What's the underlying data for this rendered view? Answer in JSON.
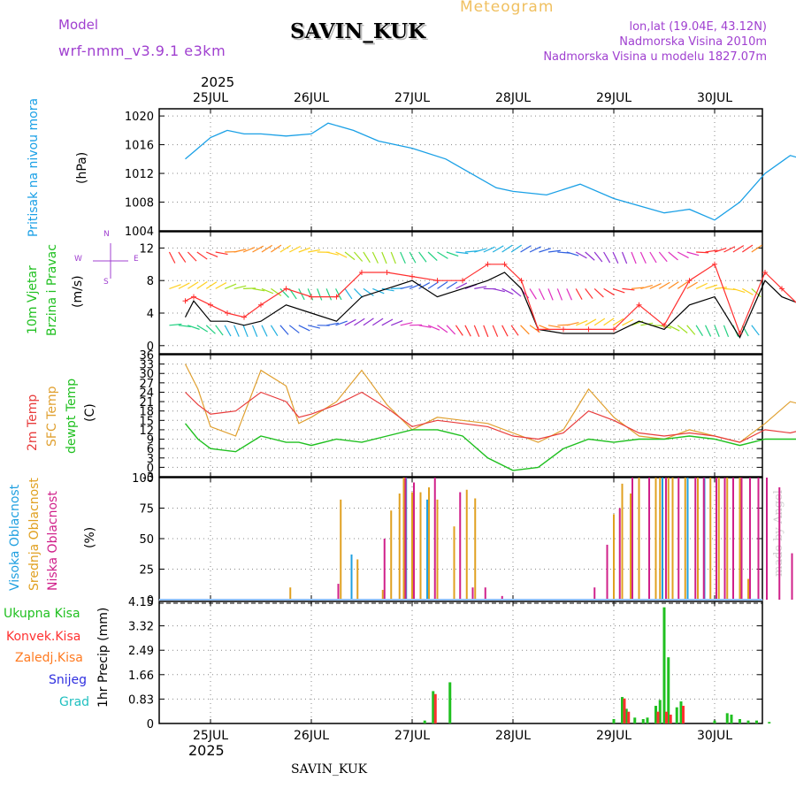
{
  "header": {
    "model_label": "Model",
    "model_name": "wrf-nmm_v3.9.1  e3km",
    "station": "SAVIN_KUK",
    "product": "Meteogram",
    "location_line1": "lon,lat (19.04E, 43.12N)",
    "location_line2": "Nadmorska Visina 2010m",
    "location_line3": "Nadmorska Visina u modelu 1827.07m",
    "year_top": "2025",
    "year_bottom": "2025",
    "footer_station": "SAVIN_KUK",
    "watermark": "made by Angel"
  },
  "panel_labels": {
    "pressure_title": "Pritisak na nivou mora",
    "pressure_unit": "(hPa)",
    "wind_title1": "10m Vjetar",
    "wind_title2": "Brzina i Pravac",
    "wind_unit": "(m/s)",
    "compass_n": "N",
    "compass_w": "W",
    "compass_e": "E",
    "compass_s": "S",
    "temp_title1": "2m Temp",
    "temp_title2": "SFC Temp",
    "temp_title3": "dewpt Temp",
    "temp_unit": "(C)",
    "cloud_title1": "Visoka Oblacnost",
    "cloud_title2": "Srednja Oblacnost",
    "cloud_title3": "Niska Oblacnost",
    "cloud_unit": "(%)",
    "precip_unit": "1hr Precip (mm)",
    "precip_legend": [
      "Ukupna Kisa",
      "Konvek.Kisa",
      "Zaledj.Kisa",
      "Snijeg",
      "Grad"
    ]
  },
  "colors": {
    "pressure": "#1aa0e6",
    "wind_speed": "#000000",
    "wind_gust": "#ff3030",
    "temp_2m": "#e83c3c",
    "temp_sfc": "#e0a030",
    "temp_dew": "#20c020",
    "cloud_high": "#20a0e0",
    "cloud_mid": "#e0a020",
    "cloud_low": "#d0208a",
    "precip_total": "#20c020",
    "precip_conv": "#ff3030",
    "precip_frz": "#ff7a20",
    "precip_snow": "#3030e0",
    "precip_hail": "#20c0c0",
    "title_purple": "#a040d0",
    "title_orange": "#f0c060"
  },
  "chart_data": [
    {
      "type": "line",
      "title": "Pritisak na nivou mora",
      "ylabel": "(hPa)",
      "x_tick_labels": [
        "25JUL",
        "26JUL",
        "27JUL",
        "28JUL",
        "29JUL",
        "30JUL"
      ],
      "yticks": [
        1004,
        1008,
        1012,
        1016,
        1020
      ],
      "ylim": [
        1004,
        1021
      ],
      "x_hours_from_25jul00": [
        -6,
        -4,
        0,
        4,
        8,
        12,
        18,
        24,
        28,
        34,
        40,
        48,
        56,
        62,
        68,
        72,
        80,
        88,
        96,
        102,
        108,
        114,
        120,
        126,
        132,
        138,
        141
      ],
      "series": [
        {
          "name": "pressure",
          "values": [
            1014,
            1015,
            1017,
            1018,
            1017.5,
            1017.5,
            1017.2,
            1017.5,
            1019,
            1018,
            1016.5,
            1015.5,
            1014,
            1012,
            1010,
            1009.5,
            1009,
            1010.5,
            1008.5,
            1007.5,
            1006.5,
            1007,
            1005.5,
            1008,
            1012,
            1014.5,
            1014
          ]
        }
      ]
    },
    {
      "type": "line",
      "title": "10m Vjetar Brzina i Pravac",
      "ylabel": "(m/s)",
      "yticks": [
        0,
        4,
        8,
        12
      ],
      "ylim": [
        -1,
        14
      ],
      "x_hours_from_25jul00": [
        -6,
        -4,
        0,
        4,
        8,
        12,
        18,
        24,
        30,
        36,
        42,
        48,
        54,
        60,
        66,
        70,
        74,
        78,
        84,
        90,
        96,
        102,
        108,
        114,
        120,
        126,
        132,
        136,
        141
      ],
      "series": [
        {
          "name": "speed",
          "values": [
            3.5,
            5.5,
            3,
            3,
            2.5,
            3,
            5,
            4,
            3,
            6,
            7,
            8,
            6,
            7,
            8,
            9,
            7,
            2,
            1.5,
            1.5,
            1.5,
            3,
            2,
            5,
            6,
            1,
            8,
            6,
            5
          ]
        },
        {
          "name": "gust",
          "values": [
            5.5,
            6,
            5,
            4,
            3.5,
            5,
            7,
            6,
            6,
            9,
            9,
            8.5,
            8,
            8,
            10,
            10,
            8,
            2,
            2,
            2,
            2,
            5,
            2.5,
            8,
            10,
            1.5,
            9,
            7,
            4.5
          ]
        }
      ]
    },
    {
      "type": "line",
      "title": "2m Temp / SFC Temp / dewpt Temp",
      "ylabel": "(C)",
      "yticks": [
        -3,
        0,
        3,
        6,
        9,
        12,
        15,
        18,
        21,
        24,
        27,
        30,
        33,
        36
      ],
      "ylim": [
        -3,
        36
      ],
      "x_hours_from_25jul00": [
        -6,
        -3,
        0,
        6,
        12,
        18,
        21,
        24,
        30,
        36,
        42,
        48,
        54,
        60,
        66,
        72,
        78,
        84,
        90,
        96,
        102,
        108,
        114,
        120,
        126,
        132,
        138,
        141
      ],
      "series": [
        {
          "name": "2m Temp",
          "values": [
            24,
            20,
            17,
            18,
            24,
            21,
            16,
            17,
            20,
            24,
            19,
            13,
            15,
            14,
            13,
            10,
            9,
            11,
            18,
            15,
            11,
            10,
            11,
            10,
            8,
            12,
            11,
            12
          ]
        },
        {
          "name": "SFC Temp",
          "values": [
            33,
            25,
            13,
            10,
            31,
            26,
            14,
            16,
            21,
            31,
            20,
            12,
            16,
            15,
            14,
            11,
            8,
            12,
            25,
            16,
            10,
            9,
            12,
            10,
            8,
            14,
            21,
            20
          ]
        },
        {
          "name": "dewpt Temp",
          "values": [
            14,
            9,
            6,
            5,
            10,
            8,
            8,
            7,
            9,
            8,
            10,
            12,
            12,
            10,
            3,
            -1,
            0,
            6,
            9,
            8,
            9,
            9,
            10,
            9,
            7,
            9,
            9,
            9
          ]
        }
      ]
    },
    {
      "type": "bar",
      "title": "Visoka / Srednja / Niska Oblacnost",
      "ylabel": "(%)",
      "yticks": [
        0,
        25,
        50,
        75,
        100
      ],
      "ylim": [
        0,
        100
      ],
      "series": [
        {
          "name": "high",
          "x_hours": [
            34,
            47,
            52,
            108,
            114,
            118
          ],
          "values": [
            37,
            100,
            82,
            100,
            100,
            100
          ]
        },
        {
          "name": "mid",
          "x_hours": [
            19,
            31,
            35,
            41,
            43,
            45,
            46,
            48,
            50,
            52,
            54,
            58,
            61,
            63,
            96,
            98,
            100,
            102,
            106,
            107,
            109,
            110,
            113,
            116,
            119,
            121,
            123,
            126,
            128
          ],
          "values": [
            10,
            82,
            33,
            8,
            73,
            87,
            100,
            88,
            88,
            92,
            82,
            60,
            90,
            83,
            70,
            95,
            87,
            100,
            100,
            100,
            100,
            100,
            100,
            100,
            100,
            100,
            100,
            100,
            17
          ]
        },
        {
          "name": "low",
          "x_hours": [
            30,
            41,
            46,
            48,
            53,
            59,
            62,
            65,
            69,
            91,
            94,
            97,
            100,
            104,
            108,
            111,
            115,
            117,
            120,
            122,
            124,
            126,
            128,
            130,
            132,
            135,
            138
          ],
          "values": [
            13,
            50,
            100,
            96,
            100,
            88,
            10,
            10,
            3,
            10,
            45,
            75,
            100,
            100,
            100,
            100,
            100,
            100,
            100,
            100,
            100,
            100,
            100,
            100,
            100,
            92,
            38
          ]
        }
      ]
    },
    {
      "type": "bar",
      "title": "1hr Precip",
      "ylabel": "1hr Precip (mm)",
      "yticks": [
        0,
        0.83,
        1.66,
        2.49,
        3.32,
        4.15
      ],
      "ylim": [
        0,
        4.15
      ],
      "series": [
        {
          "name": "Ukupna Kisa",
          "x_hours": [
            51,
            53,
            57,
            96,
            98,
            99,
            101,
            103,
            104,
            106,
            107,
            108,
            109,
            111,
            112,
            120,
            123,
            124,
            126,
            128,
            130,
            133
          ],
          "values": [
            0.1,
            1.1,
            1.4,
            0.15,
            0.9,
            0.5,
            0.2,
            0.15,
            0.2,
            0.6,
            0.8,
            3.95,
            2.25,
            0.55,
            0.75,
            0.1,
            0.35,
            0.3,
            0.15,
            0.1,
            0.1,
            0.05
          ]
        },
        {
          "name": "Konvek.Kisa",
          "x_hours": [
            53,
            98,
            99,
            106,
            108,
            109,
            112
          ],
          "values": [
            1.0,
            0.85,
            0.4,
            0.4,
            0.4,
            0.3,
            0.6
          ]
        }
      ]
    }
  ]
}
